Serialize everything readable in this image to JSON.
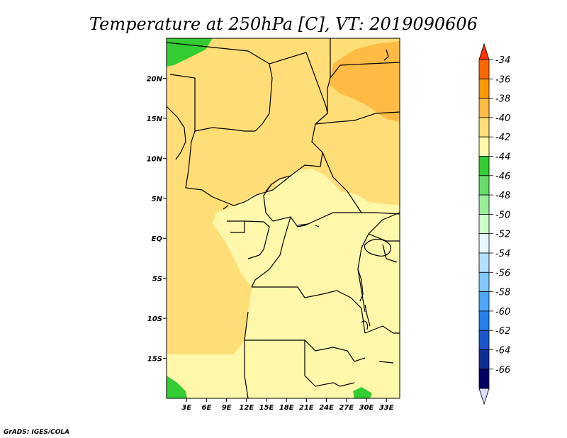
{
  "chart_data": {
    "type": "heatmap",
    "title": "Temperature at 250hPa [C], VT: 2019090606",
    "xlabel": "",
    "ylabel": "",
    "x_ticks": [
      "3E",
      "6E",
      "9E",
      "12E",
      "15E",
      "18E",
      "21E",
      "24E",
      "27E",
      "30E",
      "33E"
    ],
    "y_ticks": [
      "20N",
      "15N",
      "10N",
      "5N",
      "EQ",
      "5S",
      "10S",
      "15S"
    ],
    "lon_range_deg": [
      0,
      35
    ],
    "lat_range_deg": [
      -20,
      25
    ],
    "colorbar": {
      "unit": "C",
      "levels": [
        "-34",
        "-36",
        "-38",
        "-40",
        "-42",
        "-44",
        "-46",
        "-48",
        "-50",
        "-52",
        "-54",
        "-56",
        "-58",
        "-60",
        "-62",
        "-64",
        "-66"
      ],
      "colors": [
        "#ff3300",
        "#ff6600",
        "#ff9900",
        "#ffbb44",
        "#ffdd77",
        "#fff7aa",
        "#33cc33",
        "#66dd66",
        "#99ee99",
        "#ccffcc",
        "#e6f7ff",
        "#b3e0ff",
        "#80c8ff",
        "#4da6ff",
        "#2680ee",
        "#1a55cc",
        "#0d2e99",
        "#000066",
        "#ddddff"
      ]
    },
    "field_regions": [
      {
        "name": "northeast-warm-core",
        "value_range": "-38 to -40"
      },
      {
        "name": "northern-band",
        "value_range": "-40 to -42"
      },
      {
        "name": "central-africa",
        "value_range": "-42 to -44"
      },
      {
        "name": "atlantic-coast",
        "value_range": "-40 to -42"
      },
      {
        "name": "southern-africa",
        "value_range": "-42 to -44"
      },
      {
        "name": "northwest-corner",
        "value_range": "-44 to -46"
      },
      {
        "name": "southwest-corner",
        "value_range": "-44 to -46"
      }
    ]
  },
  "credit": "GrADS: IGES/COLA"
}
